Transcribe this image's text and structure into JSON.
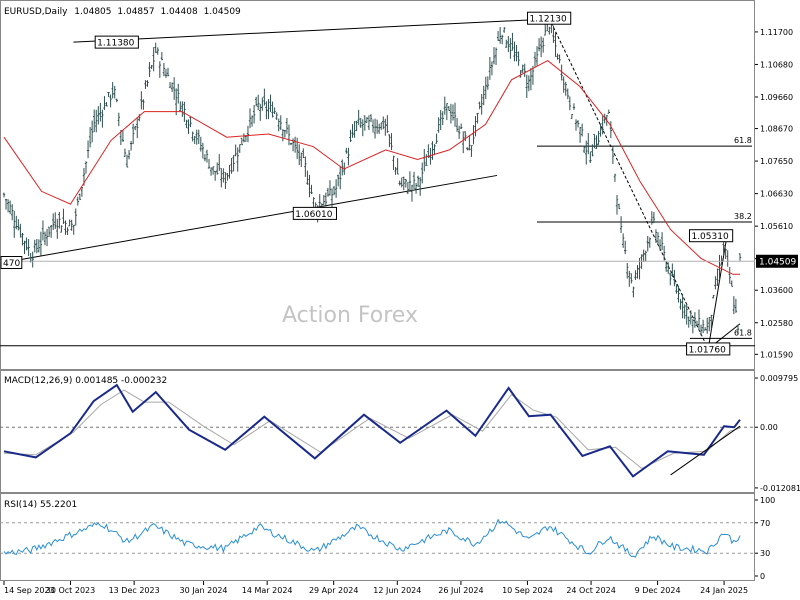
{
  "chart_data": {
    "type": "line",
    "symbol": "EURUSD,Daily",
    "ohlc": [
      "1.04805",
      "1.04857",
      "1.04408",
      "1.04509"
    ],
    "watermark": "Action Forex",
    "last_price": 1.04509,
    "last_price_label": "1.04509",
    "price_axis": {
      "ylim": [
        1.0135,
        1.1245
      ],
      "ticks": [
        "1.11700",
        "1.10680",
        "1.09660",
        "1.08670",
        "1.07650",
        "1.06630",
        "1.05610",
        "1.04590",
        "1.03600",
        "1.02580",
        "1.01590"
      ]
    },
    "x_axis": {
      "range": [
        "2023-09-14",
        "2025-02-04"
      ],
      "ticks": [
        "14 Sep 2023",
        "30 Oct 2023",
        "13 Dec 2023",
        "30 Jan 2024",
        "14 Mar 2024",
        "29 Apr 2024",
        "12 Jun 2024",
        "26 Jul 2024",
        "10 Sep 2024",
        "24 Oct 2024",
        "9 Dec 2024",
        "24 Jan 2025"
      ]
    },
    "price_series": {
      "name": "EURUSD close (approx.)",
      "color": "#2f4f4f",
      "points": [
        [
          "2023-09-14",
          1.066
        ],
        [
          "2023-10-03",
          1.047
        ],
        [
          "2023-10-20",
          1.058
        ],
        [
          "2023-11-01",
          1.056
        ],
        [
          "2023-11-15",
          1.088
        ],
        [
          "2023-11-29",
          1.099
        ],
        [
          "2023-12-08",
          1.076
        ],
        [
          "2023-12-28",
          1.111
        ],
        [
          "2024-01-15",
          1.094
        ],
        [
          "2024-02-05",
          1.074
        ],
        [
          "2024-02-14",
          1.071
        ],
        [
          "2024-03-08",
          1.094
        ],
        [
          "2024-03-20",
          1.092
        ],
        [
          "2024-04-10",
          1.074
        ],
        [
          "2024-04-16",
          1.062
        ],
        [
          "2024-04-30",
          1.067
        ],
        [
          "2024-05-15",
          1.088
        ],
        [
          "2024-06-04",
          1.088
        ],
        [
          "2024-06-14",
          1.069
        ],
        [
          "2024-06-26",
          1.069
        ],
        [
          "2024-07-17",
          1.094
        ],
        [
          "2024-08-01",
          1.08
        ],
        [
          "2024-08-23",
          1.118
        ],
        [
          "2024-09-11",
          1.101
        ],
        [
          "2024-09-25",
          1.12
        ],
        [
          "2024-10-10",
          1.094
        ],
        [
          "2024-10-23",
          1.078
        ],
        [
          "2024-11-05",
          1.092
        ],
        [
          "2024-11-14",
          1.053
        ],
        [
          "2024-11-22",
          1.037
        ],
        [
          "2024-12-06",
          1.057
        ],
        [
          "2024-12-20",
          1.038
        ],
        [
          "2025-01-02",
          1.026
        ],
        [
          "2025-01-13",
          1.024
        ],
        [
          "2025-01-24",
          1.05
        ],
        [
          "2025-02-03",
          1.024
        ],
        [
          "2025-02-04",
          1.045
        ]
      ]
    },
    "ma_series": {
      "name": "",
      "color": "#dd2222",
      "points": [
        [
          "2023-09-14",
          1.084
        ],
        [
          "2023-10-10",
          1.067
        ],
        [
          "2023-10-30",
          1.063
        ],
        [
          "2023-11-27",
          1.083
        ],
        [
          "2023-12-20",
          1.092
        ],
        [
          "2024-01-15",
          1.092
        ],
        [
          "2024-02-15",
          1.084
        ],
        [
          "2024-03-15",
          1.085
        ],
        [
          "2024-04-15",
          1.081
        ],
        [
          "2024-05-06",
          1.074
        ],
        [
          "2024-06-04",
          1.08
        ],
        [
          "2024-06-26",
          1.077
        ],
        [
          "2024-07-18",
          1.08
        ],
        [
          "2024-08-12",
          1.088
        ],
        [
          "2024-08-30",
          1.102
        ],
        [
          "2024-09-24",
          1.108
        ],
        [
          "2024-10-16",
          1.1
        ],
        [
          "2024-11-06",
          1.088
        ],
        [
          "2024-11-27",
          1.07
        ],
        [
          "2024-12-18",
          1.055
        ],
        [
          "2025-01-08",
          1.046
        ],
        [
          "2025-01-30",
          1.041
        ],
        [
          "2025-02-04",
          1.041
        ]
      ]
    },
    "price_labels": [
      {
        "text": "1.11380",
        "date": "2023-12-01",
        "price": 1.1138
      },
      {
        "text": "1.06010",
        "date": "2024-04-16",
        "price": 1.0601
      },
      {
        "text": "1.12130",
        "date": "2024-09-25",
        "price": 1.1213
      },
      {
        "text": "1.05310",
        "date": "2025-01-15",
        "price": 1.0531
      },
      {
        "text": "1.01760",
        "date": "2025-01-13",
        "price": 1.0176
      },
      {
        "text": "470",
        "date": "2023-09-14",
        "price": 1.0447
      }
    ],
    "fib_labels": [
      {
        "text": "61.8",
        "price": 1.0812
      },
      {
        "text": "38.2",
        "price": 1.0574
      },
      {
        "text": "61.8",
        "price": 1.0209
      }
    ],
    "macd": {
      "label": "MACD(12,26,9) 0.001485 -0.000232",
      "ylim": [
        -0.0121,
        0.0098
      ],
      "ticks": [
        "0.009795",
        "0.00",
        "-0.012081"
      ],
      "macd_points": [
        [
          "2023-09-14",
          -0.0048
        ],
        [
          "2023-10-06",
          -0.006
        ],
        [
          "2023-10-30",
          -0.0012
        ],
        [
          "2023-11-15",
          0.0052
        ],
        [
          "2023-12-01",
          0.0084
        ],
        [
          "2023-12-12",
          0.0031
        ],
        [
          "2023-12-28",
          0.007
        ],
        [
          "2024-01-20",
          -0.0005
        ],
        [
          "2024-02-14",
          -0.0045
        ],
        [
          "2024-03-12",
          0.0021
        ],
        [
          "2024-04-16",
          -0.0062
        ],
        [
          "2024-05-20",
          0.0025
        ],
        [
          "2024-06-14",
          -0.0031
        ],
        [
          "2024-07-16",
          0.0033
        ],
        [
          "2024-08-05",
          -0.0017
        ],
        [
          "2024-08-28",
          0.0078
        ],
        [
          "2024-09-11",
          0.0022
        ],
        [
          "2024-09-26",
          0.0025
        ],
        [
          "2024-10-18",
          -0.0057
        ],
        [
          "2024-11-06",
          -0.0038
        ],
        [
          "2024-11-22",
          -0.0098
        ],
        [
          "2024-12-16",
          -0.0048
        ],
        [
          "2025-01-10",
          -0.0055
        ],
        [
          "2025-01-24",
          0.0002
        ],
        [
          "2025-01-31",
          0.0
        ],
        [
          "2025-02-04",
          0.0015
        ]
      ],
      "signal_points": [
        [
          "2023-09-14",
          -0.0052
        ],
        [
          "2023-10-06",
          -0.0055
        ],
        [
          "2023-11-01",
          -0.001
        ],
        [
          "2023-11-20",
          0.0045
        ],
        [
          "2023-12-06",
          0.0074
        ],
        [
          "2023-12-20",
          0.005
        ],
        [
          "2024-01-06",
          0.005
        ],
        [
          "2024-01-30",
          0.0002
        ],
        [
          "2024-02-20",
          -0.0035
        ],
        [
          "2024-03-16",
          0.0013
        ],
        [
          "2024-04-20",
          -0.005
        ],
        [
          "2024-05-24",
          0.0018
        ],
        [
          "2024-06-20",
          -0.0022
        ],
        [
          "2024-07-20",
          0.0025
        ],
        [
          "2024-08-10",
          -0.0008
        ],
        [
          "2024-08-30",
          0.0065
        ],
        [
          "2024-09-14",
          0.0034
        ],
        [
          "2024-09-30",
          0.002
        ],
        [
          "2024-10-22",
          -0.0045
        ],
        [
          "2024-11-10",
          -0.004
        ],
        [
          "2024-11-28",
          -0.0082
        ],
        [
          "2024-12-20",
          -0.0052
        ],
        [
          "2025-01-12",
          -0.0048
        ],
        [
          "2025-01-28",
          -0.0008
        ],
        [
          "2025-02-04",
          -0.0002
        ]
      ]
    },
    "rsi": {
      "label": "RSI(14) 55.2201",
      "ylim": [
        0,
        100
      ],
      "ticks": [
        "100",
        "70",
        "30",
        "0"
      ],
      "points": [
        [
          "2023-09-14",
          30
        ],
        [
          "2023-10-03",
          34
        ],
        [
          "2023-10-27",
          52
        ],
        [
          "2023-11-20",
          70
        ],
        [
          "2023-12-08",
          45
        ],
        [
          "2023-12-27",
          66
        ],
        [
          "2024-01-18",
          42
        ],
        [
          "2024-02-14",
          36
        ],
        [
          "2024-03-08",
          65
        ],
        [
          "2024-04-16",
          32
        ],
        [
          "2024-05-15",
          64
        ],
        [
          "2024-06-14",
          35
        ],
        [
          "2024-07-17",
          60
        ],
        [
          "2024-08-05",
          42
        ],
        [
          "2024-08-23",
          74
        ],
        [
          "2024-09-11",
          47
        ],
        [
          "2024-09-25",
          66
        ],
        [
          "2024-10-22",
          30
        ],
        [
          "2024-11-05",
          52
        ],
        [
          "2024-11-22",
          26
        ],
        [
          "2024-12-06",
          53
        ],
        [
          "2024-12-20",
          38
        ],
        [
          "2025-01-13",
          33
        ],
        [
          "2025-01-24",
          58
        ],
        [
          "2025-01-31",
          44
        ],
        [
          "2025-02-04",
          55
        ]
      ]
    }
  }
}
